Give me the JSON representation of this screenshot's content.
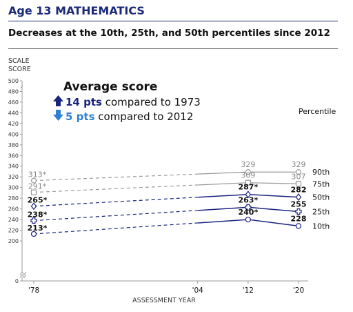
{
  "title": "Age 13 MATHEMATICS",
  "subtitle": "Decreases at the 10th, 25th, and 50th percentiles since 2012",
  "chart_data": {
    "type": "line",
    "ylabel_line1": "SCALE",
    "ylabel_line2": "SCORE",
    "xlabel": "ASSESSMENT YEAR",
    "ylim": [
      0,
      500
    ],
    "y_ticks": [
      "0",
      "200",
      "220",
      "240",
      "260",
      "280",
      "300",
      "320",
      "340",
      "360",
      "380",
      "400",
      "420",
      "440",
      "460",
      "480",
      "500"
    ],
    "x_ticks": [
      "'78",
      "'04",
      "'12",
      "'20"
    ],
    "x_tick_years": [
      1978,
      2004,
      2012,
      2020
    ],
    "percentile_header": "Percentile",
    "annotation": {
      "heading": "Average score",
      "line1_value": "14 pts",
      "line1_text": " compared to 1973",
      "line2_value": "5 pts",
      "line2_text": " compared to 2012"
    },
    "series": [
      {
        "name": "90th",
        "color": "#999999",
        "marker": "circle",
        "points": [
          [
            1978,
            313
          ],
          [
            2012,
            329
          ],
          [
            2020,
            329
          ]
        ],
        "labels": [
          "313*",
          "329",
          "329"
        ]
      },
      {
        "name": "75th",
        "color": "#999999",
        "marker": "square",
        "points": [
          [
            1978,
            291
          ],
          [
            2012,
            309
          ],
          [
            2020,
            307
          ]
        ],
        "labels": [
          "291*",
          "309",
          "307"
        ]
      },
      {
        "name": "50th",
        "color": "#1a237e",
        "marker": "diamond",
        "points": [
          [
            1978,
            265
          ],
          [
            2012,
            287
          ],
          [
            2020,
            282
          ]
        ],
        "labels": [
          "265*",
          "287*",
          "282"
        ]
      },
      {
        "name": "25th",
        "color": "#1a237e",
        "marker": "cross",
        "points": [
          [
            1978,
            238
          ],
          [
            2012,
            263
          ],
          [
            2020,
            255
          ]
        ],
        "labels": [
          "238*",
          "263*",
          "255"
        ]
      },
      {
        "name": "10th",
        "color": "#1a237e",
        "marker": "circle",
        "points": [
          [
            1978,
            213
          ],
          [
            2012,
            240
          ],
          [
            2020,
            228
          ]
        ],
        "labels": [
          "213*",
          "240*",
          "228"
        ]
      }
    ]
  }
}
